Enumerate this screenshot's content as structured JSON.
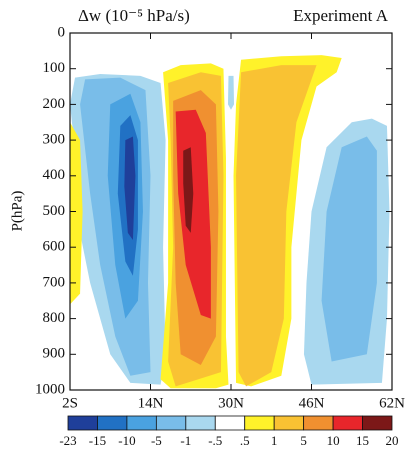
{
  "chart_data": {
    "type": "contour",
    "title": "Δw (10⁻⁵ hPa/s)",
    "subtitle": "Experiment A",
    "ylabel": "P(hPa)",
    "xlim": [
      -2,
      62
    ],
    "xticks": [
      {
        "value": -2,
        "label": "2S"
      },
      {
        "value": 14,
        "label": "14N"
      },
      {
        "value": 30,
        "label": "30N"
      },
      {
        "value": 46,
        "label": "46N"
      },
      {
        "value": 62,
        "label": "62N"
      }
    ],
    "ylim": [
      1000,
      0
    ],
    "yticks": [
      0,
      100,
      200,
      300,
      400,
      500,
      600,
      700,
      800,
      900,
      1000
    ],
    "regions": [
      {
        "color": "#a9d8ef",
        "lat": [
          -1,
          4,
          12,
          16,
          17,
          16.5,
          17,
          16,
          10,
          6,
          2,
          0,
          -1,
          -2
        ],
        "p": [
          125,
          115,
          120,
          140,
          300,
          600,
          900,
          985,
          980,
          900,
          700,
          560,
          330,
          200
        ]
      },
      {
        "color": "#fff22a",
        "lat": [
          -2,
          0,
          0.5,
          0,
          -2
        ],
        "p": [
          250,
          300,
          500,
          730,
          760
        ]
      },
      {
        "color": "#79bde9",
        "lat": [
          1,
          8,
          13,
          14,
          13.5,
          14,
          10,
          7,
          4,
          2,
          0
        ],
        "p": [
          130,
          125,
          160,
          400,
          700,
          950,
          960,
          850,
          650,
          450,
          200
        ]
      },
      {
        "color": "#4aa2e0",
        "lat": [
          6,
          10,
          12,
          12.5,
          11.5,
          9,
          7,
          5.5
        ],
        "p": [
          200,
          170,
          250,
          500,
          750,
          800,
          650,
          400
        ]
      },
      {
        "color": "#2171c4",
        "lat": [
          8,
          10,
          11.5,
          11.5,
          10.5,
          9,
          7.5
        ],
        "p": [
          260,
          230,
          300,
          550,
          680,
          640,
          450
        ]
      },
      {
        "color": "#1f3f9a",
        "lat": [
          9,
          10.5,
          11,
          10.5,
          9.5,
          8.8
        ],
        "p": [
          300,
          290,
          400,
          580,
          560,
          430
        ]
      },
      {
        "color": "#a9d8ef",
        "lat": [
          46,
          49,
          54,
          58,
          61,
          61.5,
          61,
          60,
          46,
          44.5,
          45
        ],
        "p": [
          500,
          320,
          250,
          240,
          260,
          500,
          800,
          980,
          985,
          900,
          700
        ]
      },
      {
        "color": "#79bde9",
        "lat": [
          49,
          52,
          57,
          59,
          59,
          57,
          50,
          48
        ],
        "p": [
          500,
          320,
          290,
          330,
          700,
          900,
          920,
          750
        ]
      },
      {
        "color": "#fff22a",
        "lat": [
          16.5,
          20,
          26,
          28.5,
          29,
          29,
          29.5,
          27,
          18,
          16,
          17.5,
          17.5
        ],
        "p": [
          110,
          90,
          85,
          100,
          350,
          850,
          985,
          995,
          995,
          970,
          700,
          300
        ]
      },
      {
        "color": "#fff22a",
        "lat": [
          31,
          30.5,
          31,
          32,
          40,
          48,
          52,
          51,
          47,
          44,
          42,
          42,
          40,
          34
        ],
        "p": [
          980,
          400,
          200,
          75,
          65,
          62,
          70,
          110,
          150,
          300,
          600,
          800,
          960,
          990
        ]
      },
      {
        "color": "#f9c233",
        "lat": [
          17.5,
          24,
          28,
          28.5,
          28,
          19,
          17.5,
          18.5,
          18
        ],
        "p": [
          140,
          110,
          120,
          400,
          950,
          990,
          920,
          600,
          300
        ]
      },
      {
        "color": "#f9c233",
        "lat": [
          31.5,
          31,
          32,
          40,
          47,
          46,
          43,
          41,
          40.5,
          38,
          33
        ],
        "p": [
          950,
          400,
          110,
          90,
          90,
          130,
          250,
          500,
          800,
          950,
          990
        ]
      },
      {
        "color": "#a9d8ef",
        "lat": [
          29.5,
          30.5,
          30.6,
          30,
          29.4
        ],
        "p": [
          120,
          120,
          200,
          215,
          200
        ]
      },
      {
        "color": "#f09030",
        "lat": [
          18.5,
          24,
          27,
          27.5,
          27,
          24,
          20,
          19,
          18.5
        ],
        "p": [
          190,
          160,
          200,
          500,
          850,
          930,
          900,
          700,
          400
        ]
      },
      {
        "color": "#e8262b",
        "lat": [
          19,
          23,
          25,
          26,
          26,
          24,
          21,
          19.5
        ],
        "p": [
          220,
          215,
          280,
          600,
          800,
          790,
          650,
          450
        ]
      },
      {
        "color": "#7c1818",
        "lat": [
          20.5,
          22,
          22.5,
          22,
          21,
          20.5
        ],
        "p": [
          330,
          320,
          450,
          560,
          540,
          420
        ]
      }
    ],
    "colorbar": {
      "ticks": [
        -23,
        -15,
        -10,
        -5,
        -1,
        {
          "value": -0.5,
          "label": "-.5"
        },
        {
          "value": 0.5,
          "label": ".5"
        },
        1,
        5,
        10,
        15,
        20
      ],
      "colors": [
        "#1f3f9a",
        "#2171c4",
        "#4aa2e0",
        "#79bde9",
        "#a9d8ef",
        "#ffffff",
        "#fff22a",
        "#f9c233",
        "#f09030",
        "#e8262b",
        "#7c1818"
      ]
    }
  }
}
